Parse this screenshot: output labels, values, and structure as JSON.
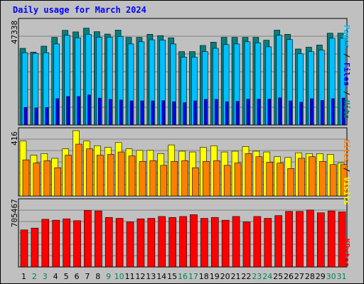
{
  "title": "Daily usage for March 2024",
  "colors": {
    "hits": "#008080",
    "files": "#00c0ff",
    "pages": "#0000ff",
    "visits": "#ffff00",
    "sites": "#ff8000",
    "kbytes": "#ff0000",
    "weekend_label": "#00805c",
    "weekday_label": "#000000"
  },
  "labels": {
    "pages": "Pages",
    "files": "Files",
    "hits": "Hits",
    "sites": "Sites",
    "visits": "Visits",
    "kbytes": "KBytes",
    "sep": " / "
  },
  "chart_data": [
    {
      "type": "bar",
      "panel": "hits-files-pages",
      "ymax_label": "47338",
      "ylim": [
        0,
        47338
      ],
      "categories": [
        "1",
        "2",
        "3",
        "4",
        "5",
        "6",
        "7",
        "8",
        "9",
        "10",
        "11",
        "12",
        "13",
        "14",
        "15",
        "16",
        "17",
        "18",
        "19",
        "20",
        "21",
        "22",
        "23",
        "24",
        "25",
        "26",
        "27",
        "28",
        "29",
        "30",
        "31"
      ],
      "weekend_days": [
        2,
        3,
        9,
        10,
        16,
        17,
        23,
        24,
        30,
        31
      ],
      "series": [
        {
          "name": "Hits",
          "values": [
            35000,
            33300,
            36000,
            40000,
            43200,
            42500,
            44200,
            42600,
            41500,
            43300,
            40000,
            40000,
            41400,
            40800,
            39800,
            33500,
            33500,
            36300,
            37800,
            40000,
            40000,
            40000,
            40000,
            38700,
            43300,
            41400,
            34700,
            35500,
            36500,
            41900,
            41900
          ]
        },
        {
          "name": "Files",
          "values": [
            33000,
            32700,
            33000,
            37000,
            40900,
            39800,
            41400,
            40100,
            40100,
            40400,
            37000,
            38000,
            38900,
            38800,
            37000,
            31000,
            31000,
            33500,
            35000,
            36700,
            37000,
            38000,
            37500,
            35700,
            41000,
            39000,
            32500,
            33500,
            34200,
            39600,
            39600
          ]
        },
        {
          "name": "Pages",
          "values": [
            8000,
            7800,
            8000,
            12000,
            13000,
            13000,
            13700,
            12300,
            11700,
            11400,
            11000,
            11000,
            11000,
            11100,
            10600,
            10200,
            11000,
            11700,
            11700,
            10600,
            10800,
            11800,
            11800,
            11800,
            12400,
            11000,
            10400,
            12000,
            11200,
            12000,
            12300
          ]
        }
      ]
    },
    {
      "type": "bar",
      "panel": "sites-visits",
      "ymax_label": "416",
      "ylim": [
        0,
        416
      ],
      "categories": [
        "1",
        "2",
        "3",
        "4",
        "5",
        "6",
        "7",
        "8",
        "9",
        "10",
        "11",
        "12",
        "13",
        "14",
        "15",
        "16",
        "17",
        "18",
        "19",
        "20",
        "21",
        "22",
        "23",
        "24",
        "25",
        "26",
        "27",
        "28",
        "29",
        "30",
        "31"
      ],
      "series": [
        {
          "name": "Visits",
          "values": [
            350,
            260,
            270,
            240,
            300,
            416,
            350,
            320,
            310,
            340,
            300,
            290,
            290,
            270,
            325,
            285,
            280,
            310,
            320,
            280,
            285,
            315,
            285,
            280,
            250,
            245,
            275,
            270,
            270,
            265,
            210
          ]
        },
        {
          "name": "Sites",
          "values": [
            230,
            210,
            225,
            180,
            260,
            330,
            300,
            260,
            265,
            280,
            255,
            220,
            225,
            195,
            220,
            225,
            180,
            220,
            225,
            195,
            210,
            270,
            250,
            215,
            210,
            175,
            240,
            250,
            220,
            200,
            200
          ]
        }
      ]
    },
    {
      "type": "bar",
      "panel": "kbytes",
      "ymax_label": "705467",
      "ylim": [
        0,
        705467
      ],
      "categories": [
        "1",
        "2",
        "3",
        "4",
        "5",
        "6",
        "7",
        "8",
        "9",
        "10",
        "11",
        "12",
        "13",
        "14",
        "15",
        "16",
        "17",
        "18",
        "19",
        "20",
        "21",
        "22",
        "23",
        "24",
        "25",
        "26",
        "27",
        "28",
        "29",
        "30",
        "31"
      ],
      "series": [
        {
          "name": "KBytes",
          "values": [
            400000,
            420000,
            515000,
            505000,
            520000,
            500000,
            610000,
            605000,
            535000,
            525000,
            485000,
            520000,
            525000,
            545000,
            535000,
            545000,
            565000,
            525000,
            535000,
            505000,
            545000,
            485000,
            545000,
            525000,
            555000,
            600000,
            600000,
            615000,
            585000,
            605000,
            595000
          ]
        }
      ]
    }
  ]
}
